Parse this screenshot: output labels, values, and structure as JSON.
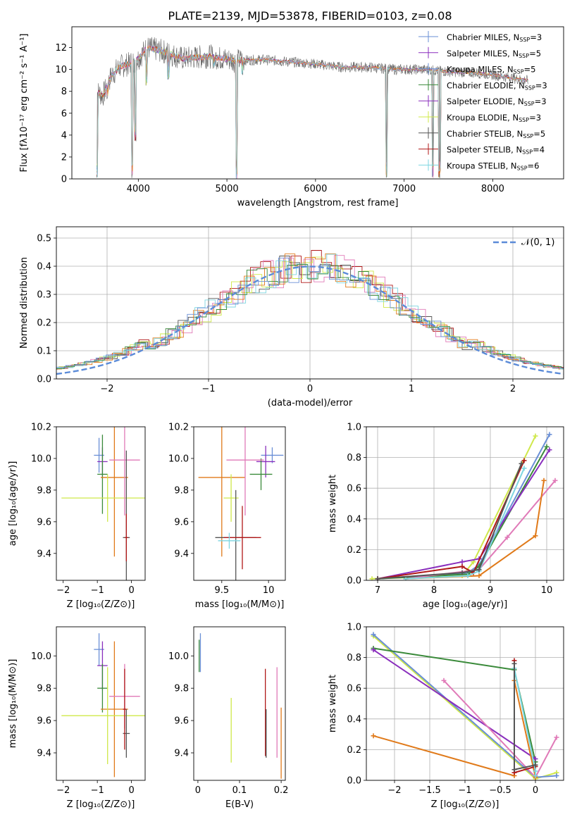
{
  "figure_title": "PLATE=2139, MJD=53878, FIBERID=0103, z=0.08",
  "colors": {
    "MILES_Chabrier": "#6a8fd6",
    "MILES_Salpeter": "#8a2fbd",
    "MILES_Kroupa": "#6a8fd6",
    "ELODIE_Chabrier": "#3a8a3a",
    "ELODIE_Salpeter": "#8a2fbd",
    "ELODIE_Kroupa": "#cfe84a",
    "STELIB_Chabrier": "#555555",
    "STELIB_Salpeter": "#b01818",
    "STELIB_Kroupa": "#7dd6e0",
    "pink": "#e07ab8",
    "orange": "#e07a1a",
    "gaussian": "#5b8bd8",
    "grid": "#b0b0b0"
  },
  "chart_data": [
    {
      "type": "line",
      "name": "spectrum",
      "title": "PLATE=2139, MJD=53878, FIBERID=0103, z=0.08",
      "xlabel": "wavelength [Angstrom, rest frame]",
      "ylabel": "Flux [fλ10⁻¹⁷ erg cm⁻² s⁻¹ A⁻¹]",
      "xlim": [
        3250,
        8800
      ],
      "ylim": [
        0,
        13.9
      ],
      "xticks": [
        4000,
        5000,
        6000,
        7000,
        8000
      ],
      "yticks": [
        0,
        2,
        4,
        6,
        8,
        10,
        12
      ],
      "grid": false,
      "legend_position": "top-right",
      "legend": [
        {
          "label": "Chabrier MILES, N",
          "sub": "SSP",
          "val": "=3",
          "color": "#6a8fd6"
        },
        {
          "label": "Salpeter MILES, N",
          "sub": "SSP",
          "val": "=5",
          "color": "#8a2fbd"
        },
        {
          "label": "Kroupa MILES, N",
          "sub": "SSP",
          "val": "=5",
          "color": "#6a8fd6"
        },
        {
          "label": "Chabrier ELODIE, N",
          "sub": "SSP",
          "val": "=3",
          "color": "#3a8a3a"
        },
        {
          "label": "Salpeter ELODIE, N",
          "sub": "SSP",
          "val": "=3",
          "color": "#8a2fbd"
        },
        {
          "label": "Kroupa ELODIE, N",
          "sub": "SSP",
          "val": "=3",
          "color": "#cfe84a"
        },
        {
          "label": "Chabrier STELIB, N",
          "sub": "SSP",
          "val": "=5",
          "color": "#555555"
        },
        {
          "label": "Salpeter STELIB, N",
          "sub": "SSP",
          "val": "=4",
          "color": "#b01818"
        },
        {
          "label": "Kroupa STELIB, N",
          "sub": "SSP",
          "val": "=6",
          "color": "#7dd6e0"
        }
      ],
      "continuum": {
        "x": [
          3530,
          3600,
          3700,
          3800,
          3900,
          4000,
          4100,
          4300,
          4500,
          4800,
          5100,
          5400,
          5700,
          6000,
          6300,
          6600,
          6900,
          7200,
          7500,
          7800,
          8100,
          8300,
          8400
        ],
        "y": [
          8.0,
          7.6,
          9.5,
          10.3,
          10.5,
          11.0,
          12.0,
          11.6,
          11.0,
          11.2,
          10.8,
          10.9,
          10.7,
          10.5,
          10.2,
          10.2,
          10.0,
          10.0,
          9.8,
          9.7,
          9.4,
          9.1,
          9.0
        ]
      },
      "dips": [
        {
          "x": 3530,
          "y": 0.0
        },
        {
          "x": 3650,
          "y": 7.2
        },
        {
          "x": 3930,
          "y": 0.0
        },
        {
          "x": 3970,
          "y": 3.3
        },
        {
          "x": 4090,
          "y": 8.5
        },
        {
          "x": 4340,
          "y": 9.0
        },
        {
          "x": 4860,
          "y": 10.2
        },
        {
          "x": 5110,
          "y": 0.0
        },
        {
          "x": 5175,
          "y": 9.2
        },
        {
          "x": 6800,
          "y": 0.0
        },
        {
          "x": 7320,
          "y": 0.0
        },
        {
          "x": 7400,
          "y": 0.0
        }
      ]
    },
    {
      "type": "line",
      "name": "residual_histograms",
      "xlabel": "(data-model)/error",
      "ylabel": "Normed distribution",
      "xlim": [
        -2.5,
        2.5
      ],
      "ylim": [
        0,
        0.54
      ],
      "xticks": [
        -2,
        -1,
        0,
        1,
        2
      ],
      "yticks": [
        0.0,
        0.1,
        0.2,
        0.3,
        0.4,
        0.5
      ],
      "grid": true,
      "legend_position": "top-right",
      "gaussian_label": "𝒩(0, 1)",
      "gaussian": {
        "mean": 0,
        "sigma": 1
      }
    },
    {
      "type": "scatter",
      "name": "Z_vs_age",
      "xlabel": "Z [log₁₀(Z/Z⊙)]",
      "ylabel": "age  [log₁₀(age/yr)]",
      "xlim": [
        -2.2,
        0.4
      ],
      "ylim": [
        9.23,
        10.2
      ],
      "xticks": [
        -2,
        -1,
        0
      ],
      "yticks": [
        9.4,
        9.6,
        9.8,
        10.0,
        10.2
      ],
      "points": [
        {
          "x": -0.95,
          "y": 10.02,
          "xerr": 0.15,
          "yerr": 0.11,
          "color": "#6a8fd6"
        },
        {
          "x": -0.85,
          "y": 9.98,
          "xerr": 0.15,
          "yerr": 0.09,
          "color": "#8a2fbd"
        },
        {
          "x": -0.85,
          "y": 9.9,
          "xerr": 0.15,
          "yerr": 0.25,
          "color": "#3a8a3a"
        },
        {
          "x": -0.5,
          "y": 9.88,
          "xerr": 0.4,
          "yerr": 0.5,
          "color": "#e07a1a"
        },
        {
          "x": -0.7,
          "y": 9.75,
          "xerr": 1.35,
          "yerr": 0.15,
          "color": "#cfe84a"
        },
        {
          "x": -0.2,
          "y": 9.99,
          "xerr": 0.45,
          "yerr": 0.35,
          "color": "#e07ab8"
        },
        {
          "x": -0.15,
          "y": 9.5,
          "xerr": 0.1,
          "yerr": 0.55,
          "color": "#555555"
        },
        {
          "x": -0.15,
          "y": 9.5,
          "xerr": 0.05,
          "yerr": 0.15,
          "color": "#b01818"
        }
      ]
    },
    {
      "type": "scatter",
      "name": "mass_vs_age",
      "xlabel": "mass [log₁₀(M/M⊙)]",
      "ylabel": "",
      "xlim": [
        9.2,
        10.18
      ],
      "ylim": [
        9.23,
        10.2
      ],
      "xticks": [
        9.5,
        10.0
      ],
      "yticks": [
        9.4,
        9.6,
        9.8,
        10.0,
        10.2
      ],
      "points": [
        {
          "x": 10.04,
          "y": 10.02,
          "xerr": 0.12,
          "yerr": 0.05,
          "color": "#6a8fd6"
        },
        {
          "x": 9.97,
          "y": 9.98,
          "xerr": 0.1,
          "yerr": 0.1,
          "color": "#8a2fbd"
        },
        {
          "x": 9.92,
          "y": 9.9,
          "xerr": 0.12,
          "yerr": 0.1,
          "color": "#3a8a3a"
        },
        {
          "x": 9.5,
          "y": 9.88,
          "xerr": 0.25,
          "yerr": 0.5,
          "color": "#e07a1a"
        },
        {
          "x": 9.6,
          "y": 9.75,
          "xerr": 0.08,
          "yerr": 0.15,
          "color": "#cfe84a"
        },
        {
          "x": 9.75,
          "y": 9.99,
          "xerr": 0.2,
          "yerr": 0.35,
          "color": "#e07ab8"
        },
        {
          "x": 9.65,
          "y": 9.5,
          "xerr": 0.22,
          "yerr": 0.3,
          "color": "#555555"
        },
        {
          "x": 9.72,
          "y": 9.5,
          "xerr": 0.2,
          "yerr": 0.2,
          "color": "#b01818"
        },
        {
          "x": 9.58,
          "y": 9.48,
          "xerr": 0.12,
          "yerr": 0.05,
          "color": "#7dd6e0"
        }
      ]
    },
    {
      "type": "line",
      "name": "age_mass_weight",
      "xlabel": "age  [log₁₀(age/yr)]",
      "ylabel": "mass weight",
      "xlim": [
        6.8,
        10.3
      ],
      "ylim": [
        0,
        1
      ],
      "xticks": [
        7,
        8,
        9,
        10
      ],
      "yticks": [
        0.0,
        0.2,
        0.4,
        0.6,
        0.8,
        1.0
      ],
      "grid": true,
      "series": [
        {
          "color": "#cfe84a",
          "x": [
            6.9,
            8.5,
            8.7,
            9.8
          ],
          "y": [
            0.01,
            0.03,
            0.12,
            0.94
          ]
        },
        {
          "color": "#6a8fd6",
          "x": [
            7.0,
            8.6,
            8.8,
            10.05
          ],
          "y": [
            0.01,
            0.05,
            0.1,
            0.95
          ]
        },
        {
          "color": "#3a8a3a",
          "x": [
            7.0,
            8.6,
            8.8,
            10.0
          ],
          "y": [
            0.01,
            0.04,
            0.09,
            0.87
          ]
        },
        {
          "color": "#8a2fbd",
          "x": [
            7.0,
            8.5,
            8.8,
            10.05
          ],
          "y": [
            0.01,
            0.12,
            0.14,
            0.85
          ]
        },
        {
          "color": "#e07ab8",
          "x": [
            7.5,
            8.8,
            9.3,
            10.15
          ],
          "y": [
            0.01,
            0.07,
            0.28,
            0.65
          ]
        },
        {
          "color": "#e07a1a",
          "x": [
            7.5,
            8.8,
            9.8,
            9.95
          ],
          "y": [
            0.01,
            0.03,
            0.29,
            0.65
          ]
        },
        {
          "color": "#b01818",
          "x": [
            7.0,
            8.5,
            8.7,
            9.6
          ],
          "y": [
            0.01,
            0.09,
            0.05,
            0.78
          ]
        },
        {
          "color": "#7dd6e0",
          "x": [
            7.5,
            8.6,
            8.8,
            9.6
          ],
          "y": [
            0.01,
            0.03,
            0.06,
            0.73
          ]
        },
        {
          "color": "#555555",
          "x": [
            7.0,
            8.5,
            8.8,
            9.55
          ],
          "y": [
            0.01,
            0.05,
            0.07,
            0.76
          ]
        }
      ]
    },
    {
      "type": "scatter",
      "name": "Z_vs_mass",
      "xlabel": "Z [log₁₀(Z/Z⊙)]",
      "ylabel": "mass [log₁₀(M/M⊙)]",
      "xlim": [
        -2.2,
        0.4
      ],
      "ylim": [
        9.23,
        10.18
      ],
      "xticks": [
        -2,
        -1,
        0
      ],
      "yticks": [
        9.4,
        9.6,
        9.8,
        10.0
      ],
      "points": [
        {
          "x": -0.95,
          "y": 10.04,
          "xerr": 0.15,
          "yerr": 0.1,
          "color": "#6a8fd6"
        },
        {
          "x": -0.85,
          "y": 9.94,
          "xerr": 0.15,
          "yerr": 0.15,
          "color": "#8a2fbd"
        },
        {
          "x": -0.85,
          "y": 9.8,
          "xerr": 0.15,
          "yerr": 0.15,
          "color": "#3a8a3a"
        },
        {
          "x": -0.5,
          "y": 9.67,
          "xerr": 0.4,
          "yerr": 0.42,
          "color": "#e07a1a"
        },
        {
          "x": -0.7,
          "y": 9.63,
          "xerr": 1.35,
          "yerr": 0.3,
          "color": "#cfe84a"
        },
        {
          "x": -0.2,
          "y": 9.75,
          "xerr": 0.45,
          "yerr": 0.2,
          "color": "#e07ab8"
        },
        {
          "x": -0.15,
          "y": 9.52,
          "xerr": 0.1,
          "yerr": 0.15,
          "color": "#555555"
        },
        {
          "x": -0.2,
          "y": 9.67,
          "xerr": 0.05,
          "yerr": 0.25,
          "color": "#b01818"
        }
      ]
    },
    {
      "type": "scatter",
      "name": "ebv_vs_mass",
      "xlabel": "E(B-V)",
      "ylabel": "",
      "xlim": [
        -0.01,
        0.21
      ],
      "ylim": [
        9.23,
        10.18
      ],
      "xticks": [
        0.0,
        0.1,
        0.2
      ],
      "yticks": [
        9.4,
        9.6,
        9.8,
        10.0
      ],
      "points": [
        {
          "x": 0.003,
          "y": 10.0,
          "yerr": 0.1,
          "color": "#3a8a3a"
        },
        {
          "x": 0.006,
          "y": 10.02,
          "yerr": 0.12,
          "color": "#6a8fd6"
        },
        {
          "x": 0.08,
          "y": 9.54,
          "yerr": 0.2,
          "color": "#cfe84a"
        },
        {
          "x": 0.162,
          "y": 9.65,
          "yerr": 0.27,
          "color": "#b01818"
        },
        {
          "x": 0.164,
          "y": 9.52,
          "yerr": 0.15,
          "color": "#555555"
        },
        {
          "x": 0.19,
          "y": 9.65,
          "yerr": 0.28,
          "color": "#e07ab8"
        },
        {
          "x": 0.2,
          "y": 9.46,
          "yerr": 0.22,
          "color": "#e07a1a"
        }
      ]
    },
    {
      "type": "line",
      "name": "Z_mass_weight",
      "xlabel": "Z [log₁₀(Z/Z⊙)]",
      "ylabel": "mass weight",
      "xlim": [
        -2.4,
        0.4
      ],
      "ylim": [
        0,
        1
      ],
      "xticks": [
        -2.0,
        -1.5,
        -1.0,
        -0.5,
        0.0
      ],
      "yticks": [
        0.0,
        0.2,
        0.4,
        0.6,
        0.8,
        1.0
      ],
      "grid": true,
      "series": [
        {
          "color": "#cfe84a",
          "x": [
            -2.3,
            0.0,
            0.3
          ],
          "y": [
            0.94,
            0.01,
            0.05
          ]
        },
        {
          "color": "#6a8fd6",
          "x": [
            -2.3,
            0.0,
            0.3
          ],
          "y": [
            0.95,
            0.02,
            0.03
          ]
        },
        {
          "color": "#3a8a3a",
          "x": [
            -2.3,
            -0.3,
            0.0
          ],
          "y": [
            0.86,
            0.72,
            0.12
          ]
        },
        {
          "color": "#8a2fbd",
          "x": [
            -2.3,
            0.0
          ],
          "y": [
            0.85,
            0.14
          ]
        },
        {
          "color": "#e07ab8",
          "x": [
            -1.3,
            0.0,
            0.3
          ],
          "y": [
            0.65,
            0.02,
            0.28
          ]
        },
        {
          "color": "#e07a1a",
          "x": [
            -2.3,
            -0.3,
            -0.3,
            0.0
          ],
          "y": [
            0.29,
            0.03,
            0.65,
            0.02
          ]
        },
        {
          "color": "#b01818",
          "x": [
            -0.3,
            -0.3,
            0.0
          ],
          "y": [
            0.78,
            0.05,
            0.09
          ]
        },
        {
          "color": "#7dd6e0",
          "x": [
            -0.3,
            0.0,
            0.0
          ],
          "y": [
            0.73,
            0.06,
            0.03
          ]
        },
        {
          "color": "#555555",
          "x": [
            -0.3,
            -0.3,
            0.0
          ],
          "y": [
            0.76,
            0.07,
            0.1
          ]
        }
      ]
    }
  ]
}
